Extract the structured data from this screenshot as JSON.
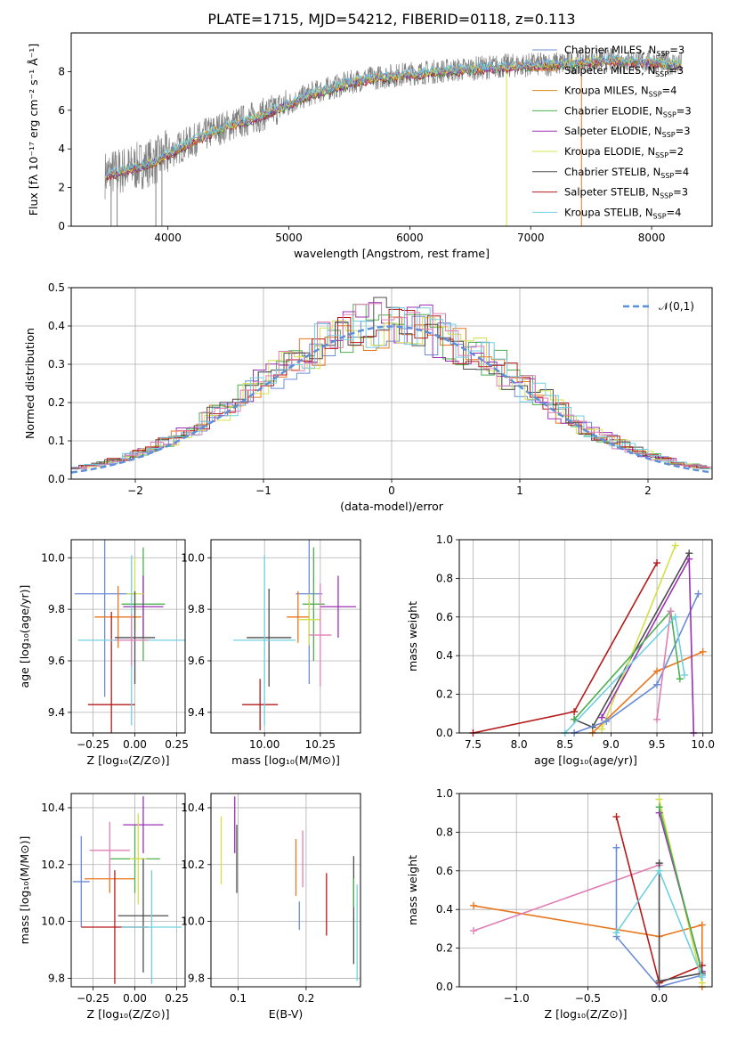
{
  "figure_title": "PLATE=1715, MJD=54212, FIBERID=0118, z=0.113",
  "colors": {
    "Chabrier MILES": "#6b8cd6",
    "Salpeter MILES": "#e8771e",
    "Kroupa MILES": "#d88a1a",
    "Chabrier ELODIE": "#4caf50",
    "Salpeter ELODIE": "#9b30b5",
    "Kroupa ELODIE": "#d4e04a",
    "Chabrier STELIB": "#4d4d4d",
    "Salpeter STELIB": "#b51a1a",
    "Kroupa STELIB": "#70d0e0",
    "pink": "#e07fb5",
    "data": "#808080",
    "normal": "#5b8fd9"
  },
  "chart_data": [
    {
      "id": "spectrum",
      "type": "line",
      "title": "PLATE=1715, MJD=54212, FIBERID=0118, z=0.113",
      "xlabel": "wavelength [Angstrom, rest frame]",
      "ylabel": "Flux [fλ 10⁻¹⁷ erg cm⁻² s⁻¹ Å⁻¹]",
      "xlim": [
        3200,
        8500
      ],
      "ylim": [
        0,
        10
      ],
      "xticks": [
        4000,
        5000,
        6000,
        7000,
        8000
      ],
      "yticks": [
        0,
        2,
        4,
        6,
        8
      ],
      "legend_position": "top-right",
      "legend": [
        {
          "name": "Chabrier MILES, N_SSP=3",
          "color": "Chabrier MILES"
        },
        {
          "name": "Salpeter MILES, N_SSP=3",
          "color": "Salpeter MILES"
        },
        {
          "name": "Kroupa MILES, N_SSP=4",
          "color": "Kroupa MILES"
        },
        {
          "name": "Chabrier ELODIE, N_SSP=3",
          "color": "Chabrier ELODIE"
        },
        {
          "name": "Salpeter ELODIE, N_SSP=3",
          "color": "Salpeter ELODIE"
        },
        {
          "name": "Kroupa ELODIE, N_SSP=2",
          "color": "Kroupa ELODIE"
        },
        {
          "name": "Chabrier STELIB, N_SSP=4",
          "color": "Chabrier STELIB"
        },
        {
          "name": "Salpeter STELIB, N_SSP=3",
          "color": "Salpeter STELIB"
        },
        {
          "name": "Kroupa STELIB, N_SSP=4",
          "color": "Kroupa STELIB"
        }
      ],
      "model_trend": {
        "x": [
          3500,
          3700,
          3900,
          4100,
          4400,
          4800,
          5200,
          5600,
          6000,
          6400,
          6800,
          7200,
          7600,
          8000,
          8250
        ],
        "y": [
          2.7,
          3.0,
          3.4,
          4.1,
          5.0,
          5.8,
          6.9,
          7.6,
          7.9,
          8.1,
          8.3,
          8.4,
          8.6,
          8.5,
          8.4
        ]
      }
    },
    {
      "id": "residuals",
      "type": "histogram",
      "xlabel": "(data-model)/error",
      "ylabel": "Normed distribution",
      "xlim": [
        -2.5,
        2.5
      ],
      "ylim": [
        0,
        0.5
      ],
      "xticks": [
        -2,
        -1,
        0,
        1,
        2
      ],
      "yticks": [
        0.0,
        0.1,
        0.2,
        0.3,
        0.4,
        0.5
      ],
      "grid": true,
      "legend_position": "top-right",
      "legend": [
        {
          "name": "𝒩(0,1)",
          "style": "dashed",
          "color": "normal"
        }
      ],
      "bin_edges_start": -2.5,
      "bin_width": 0.1,
      "reference_peak": [
        0.45,
        0.48,
        0.45,
        0.44,
        0.43,
        0.45,
        0.44,
        0.43,
        0.41
      ]
    },
    {
      "id": "age_vs_Z",
      "type": "errorbar",
      "xlabel": "Z [log₁₀(Z/Z⊙)]",
      "ylabel": "age  [log₁₀(age/yr)]",
      "xlim": [
        -0.38,
        0.3
      ],
      "ylim": [
        9.32,
        10.07
      ],
      "xticks": [
        -0.25,
        0.0,
        0.25
      ],
      "yticks": [
        9.4,
        9.6,
        9.8,
        10.0
      ],
      "grid": true,
      "points": [
        {
          "c": "Chabrier MILES",
          "x": -0.18,
          "xerr": 0.18,
          "y": 9.86,
          "yerr": 0.4
        },
        {
          "c": "Salpeter MILES",
          "x": -0.1,
          "xerr": 0.14,
          "y": 9.77,
          "yerr": 0.12
        },
        {
          "c": "Chabrier ELODIE",
          "x": 0.05,
          "xerr": 0.13,
          "y": 9.82,
          "yerr": 0.22
        },
        {
          "c": "Salpeter ELODIE",
          "x": 0.05,
          "xerr": 0.12,
          "y": 9.81,
          "yerr": 0.12
        },
        {
          "c": "Kroupa ELODIE",
          "x": 0.0,
          "xerr": 0.05,
          "y": 9.86,
          "yerr": 0.14
        },
        {
          "c": "Chabrier STELIB",
          "x": 0.0,
          "xerr": 0.12,
          "y": 9.69,
          "yerr": 0.18
        },
        {
          "c": "Salpeter STELIB",
          "x": -0.14,
          "xerr": 0.14,
          "y": 9.43,
          "yerr": 0.36
        },
        {
          "c": "Kroupa STELIB",
          "x": -0.02,
          "xerr": 0.32,
          "y": 9.68,
          "yerr": 0.33
        },
        {
          "c": "pink",
          "x": -0.02,
          "xerr": 0.1,
          "y": 9.68,
          "yerr": 0.1
        }
      ]
    },
    {
      "id": "age_vs_mass",
      "type": "errorbar",
      "xlabel": "mass [log₁₀(M/M⊙)]",
      "ylabel": "",
      "xlim": [
        9.76,
        10.43
      ],
      "ylim": [
        9.32,
        10.07
      ],
      "xticks": [
        10.0,
        10.25
      ],
      "yticks": [
        9.4,
        9.6,
        9.8,
        10.0
      ],
      "grid": true,
      "points": [
        {
          "c": "Chabrier MILES",
          "x": 10.2,
          "xerr": 0.06,
          "y": 9.86,
          "yerr": 0.35
        },
        {
          "c": "Salpeter MILES",
          "x": 10.15,
          "xerr": 0.05,
          "y": 9.77,
          "yerr": 0.1
        },
        {
          "c": "Chabrier ELODIE",
          "x": 10.22,
          "xerr": 0.05,
          "y": 9.82,
          "yerr": 0.22
        },
        {
          "c": "Salpeter ELODIE",
          "x": 10.33,
          "xerr": 0.08,
          "y": 9.81,
          "yerr": 0.12
        },
        {
          "c": "Kroupa ELODIE",
          "x": 10.2,
          "xerr": 0.05,
          "y": 9.76,
          "yerr": 0.1
        },
        {
          "c": "Chabrier STELIB",
          "x": 10.02,
          "xerr": 0.1,
          "y": 9.69,
          "yerr": 0.19
        },
        {
          "c": "Salpeter STELIB",
          "x": 9.98,
          "xerr": 0.08,
          "y": 9.43,
          "yerr": 0.1
        },
        {
          "c": "Kroupa STELIB",
          "x": 10.0,
          "xerr": 0.14,
          "y": 9.68,
          "yerr": 0.33
        },
        {
          "c": "pink",
          "x": 10.25,
          "xerr": 0.05,
          "y": 9.7,
          "yerr": 0.2
        }
      ]
    },
    {
      "id": "massweight_vs_age",
      "type": "line",
      "xlabel": "age  [log₁₀(age/yr)]",
      "ylabel": "mass weight",
      "xlim": [
        7.35,
        10.1
      ],
      "ylim": [
        0,
        1
      ],
      "xticks": [
        7.5,
        8.0,
        8.5,
        9.0,
        9.5,
        10.0
      ],
      "yticks": [
        0.0,
        0.2,
        0.4,
        0.6,
        0.8,
        1.0
      ],
      "grid": true,
      "series": [
        {
          "c": "Salpeter STELIB",
          "x": [
            7.5,
            8.6,
            9.5
          ],
          "y": [
            0.0,
            0.11,
            0.88
          ]
        },
        {
          "c": "Chabrier STELIB",
          "x": [
            8.6,
            8.8,
            9.85
          ],
          "y": [
            0.07,
            0.03,
            0.93
          ]
        },
        {
          "c": "Salpeter MILES",
          "x": [
            8.8,
            9.5,
            10.0
          ],
          "y": [
            0.0,
            0.32,
            0.42
          ]
        },
        {
          "c": "Kroupa ELODIE",
          "x": [
            8.9,
            9.7
          ],
          "y": [
            0.02,
            0.97
          ]
        },
        {
          "c": "Chabrier MILES",
          "x": [
            8.6,
            8.95,
            9.5,
            9.95
          ],
          "y": [
            0.0,
            0.06,
            0.25,
            0.72
          ]
        },
        {
          "c": "Salpeter ELODIE",
          "x": [
            8.9,
            9.85,
            9.9
          ],
          "y": [
            0.08,
            0.9,
            0.0
          ]
        },
        {
          "c": "Chabrier ELODIE",
          "x": [
            8.6,
            9.65,
            9.75
          ],
          "y": [
            0.07,
            0.63,
            0.28
          ]
        },
        {
          "c": "pink",
          "x": [
            9.5,
            9.65
          ],
          "y": [
            0.07,
            0.63
          ]
        },
        {
          "c": "Kroupa STELIB",
          "x": [
            8.5,
            9.7,
            9.8
          ],
          "y": [
            0.0,
            0.6,
            0.3
          ]
        }
      ]
    },
    {
      "id": "mass_vs_Z",
      "type": "errorbar",
      "xlabel": "Z [log₁₀(Z/Z⊙)]",
      "ylabel": "mass [log₁₀(M/M⊙)]",
      "xlim": [
        -0.38,
        0.3
      ],
      "ylim": [
        9.77,
        10.45
      ],
      "xticks": [
        -0.25,
        0.0,
        0.25
      ],
      "xticklabels": [
        "−0.25",
        "0.00",
        "0.25"
      ],
      "yticks": [
        9.8,
        10.0,
        10.2,
        10.4
      ],
      "grid": true,
      "points": [
        {
          "c": "Chabrier MILES",
          "x": -0.32,
          "xerr": 0.05,
          "y": 10.14,
          "yerr": 0.16
        },
        {
          "c": "Salpeter MILES",
          "x": -0.15,
          "xerr": 0.15,
          "y": 10.15,
          "yerr": 0.05
        },
        {
          "c": "Chabrier ELODIE",
          "x": 0.0,
          "xerr": 0.15,
          "y": 10.22,
          "yerr": 0.12
        },
        {
          "c": "Salpeter ELODIE",
          "x": 0.05,
          "xerr": 0.12,
          "y": 10.34,
          "yerr": 0.1
        },
        {
          "c": "Kroupa ELODIE",
          "x": 0.02,
          "xerr": 0.05,
          "y": 10.22,
          "yerr": 0.16
        },
        {
          "c": "Chabrier STELIB",
          "x": 0.05,
          "xerr": 0.15,
          "y": 10.02,
          "yerr": 0.2
        },
        {
          "c": "Salpeter STELIB",
          "x": -0.12,
          "xerr": 0.2,
          "y": 9.98,
          "yerr": 0.2
        },
        {
          "c": "Kroupa STELIB",
          "x": 0.1,
          "xerr": 0.18,
          "y": 9.98,
          "yerr": 0.2
        },
        {
          "c": "pink",
          "x": -0.15,
          "xerr": 0.12,
          "y": 10.25,
          "yerr": 0.1
        }
      ]
    },
    {
      "id": "mass_vs_ebv",
      "type": "errorbar",
      "xlabel": "E(B-V)",
      "ylabel": "",
      "xlim": [
        0.06,
        0.28
      ],
      "ylim": [
        9.77,
        10.45
      ],
      "xticks": [
        0.1,
        0.2
      ],
      "yticks": [
        9.8,
        10.0,
        10.2,
        10.4
      ],
      "grid": true,
      "points": [
        {
          "c": "Kroupa ELODIE",
          "x": 0.075,
          "y": 10.25,
          "yerr": 0.12
        },
        {
          "c": "Salpeter ELODIE",
          "x": 0.095,
          "y": 10.34,
          "yerr": 0.1
        },
        {
          "c": "Chabrier STELIB",
          "x": 0.098,
          "y": 10.22,
          "yerr": 0.12
        },
        {
          "c": "Salpeter MILES",
          "x": 0.185,
          "y": 10.19,
          "yerr": 0.1
        },
        {
          "c": "Chabrier MILES",
          "x": 0.19,
          "y": 10.02,
          "yerr": 0.05
        },
        {
          "c": "pink",
          "x": 0.195,
          "y": 10.22,
          "yerr": 0.1
        },
        {
          "c": "Salpeter STELIB",
          "x": 0.23,
          "y": 10.06,
          "yerr": 0.11
        },
        {
          "c": "Chabrier STELIB",
          "x": 0.27,
          "y": 10.04,
          "yerr": 0.19
        },
        {
          "c": "Kroupa STELIB",
          "x": 0.275,
          "y": 9.96,
          "yerr": 0.17
        },
        {
          "c": "Chabrier ELODIE",
          "x": 0.27,
          "y": 10.1,
          "yerr": 0.05
        }
      ]
    },
    {
      "id": "massweight_vs_Z",
      "type": "line",
      "xlabel": "Z [log₁₀(Z/Z⊙)]",
      "ylabel": "mass weight",
      "xlim": [
        -1.4,
        0.37
      ],
      "ylim": [
        0,
        1
      ],
      "xticks": [
        -1.0,
        -0.5,
        0.0
      ],
      "xticklabels": [
        "−1.0",
        "−0.5",
        "0.0"
      ],
      "yticks": [
        0.0,
        0.2,
        0.4,
        0.6,
        0.8,
        1.0
      ],
      "grid": true,
      "series": [
        {
          "c": "Salpeter MILES",
          "x": [
            -1.3,
            0.0,
            0.3,
            0.3
          ],
          "y": [
            0.42,
            0.26,
            0.32,
            0.0
          ]
        },
        {
          "c": "pink",
          "x": [
            -1.3,
            0.0
          ],
          "y": [
            0.29,
            0.63
          ]
        },
        {
          "c": "Chabrier MILES",
          "x": [
            -0.3,
            -0.3,
            0.0,
            0.3
          ],
          "y": [
            0.72,
            0.26,
            0.0,
            0.06
          ]
        },
        {
          "c": "Salpeter STELIB",
          "x": [
            -0.3,
            0.0,
            0.3
          ],
          "y": [
            0.88,
            0.02,
            0.11
          ]
        },
        {
          "c": "Kroupa ELODIE",
          "x": [
            0.0,
            0.3
          ],
          "y": [
            0.97,
            0.02
          ]
        },
        {
          "c": "Salpeter ELODIE",
          "x": [
            0.0,
            0.3
          ],
          "y": [
            0.9,
            0.08
          ]
        },
        {
          "c": "Chabrier ELODIE",
          "x": [
            0.0,
            0.3
          ],
          "y": [
            0.93,
            0.07
          ]
        },
        {
          "c": "Chabrier STELIB",
          "x": [
            0.0,
            0.0,
            0.3
          ],
          "y": [
            0.64,
            0.03,
            0.07
          ]
        },
        {
          "c": "Kroupa STELIB",
          "x": [
            -0.3,
            0.0,
            0.3
          ],
          "y": [
            0.28,
            0.6,
            0.05
          ]
        }
      ]
    }
  ]
}
